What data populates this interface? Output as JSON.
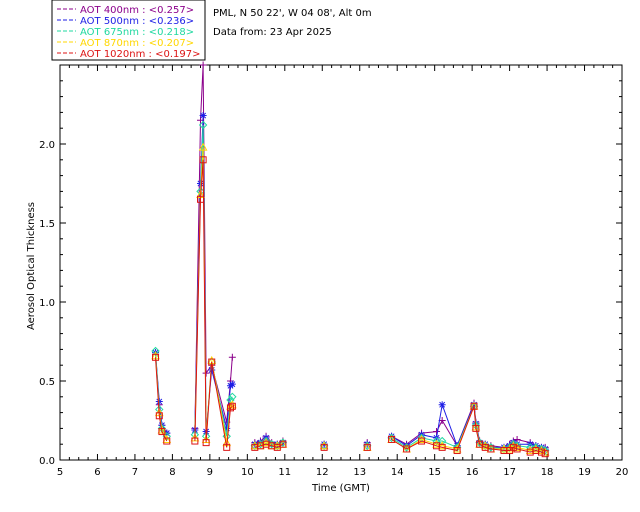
{
  "chart_data": {
    "type": "line",
    "xlabel": "Time (GMT)",
    "ylabel": "Aerosol Optical Thickness",
    "xlim": [
      5,
      20
    ],
    "ylim": [
      0,
      2.5
    ],
    "xticks": [
      "5",
      "6",
      "7",
      "8",
      "9",
      "10",
      "11",
      "12",
      "13",
      "14",
      "15",
      "16",
      "17",
      "18",
      "19",
      "20"
    ],
    "yticks": [
      "0.0",
      "0.5",
      "1.0",
      "1.5",
      "2.0"
    ],
    "info_lines": [
      "PML, N 50 22', W 04 08', Alt 0m",
      "Data from: 23 Apr 2025"
    ],
    "series": [
      {
        "name": "AOT  400nm : <0.257>",
        "color": "#8b008b",
        "marker": "plus",
        "x": [
          7.55,
          7.65,
          7.72,
          7.85,
          8.6,
          8.75,
          8.82,
          8.9,
          9.05,
          9.45,
          9.55,
          9.6,
          10.2,
          10.35,
          10.5,
          10.65,
          10.8,
          10.95,
          12.05,
          13.2,
          13.85,
          14.25,
          14.65,
          15.05,
          15.2,
          15.6,
          16.05,
          16.1,
          16.2,
          16.35,
          16.5,
          16.85,
          17,
          17.1,
          17.2,
          17.55,
          17.7,
          17.85,
          17.95
        ],
        "y": [
          0.67,
          0.35,
          0.22,
          0.17,
          0.2,
          2.15,
          2.5,
          0.55,
          0.6,
          0.24,
          0.5,
          0.65,
          0.11,
          0.12,
          0.15,
          0.11,
          0.1,
          0.12,
          0.1,
          0.11,
          0.15,
          0.1,
          0.17,
          0.18,
          0.25,
          0.09,
          0.36,
          0.24,
          0.12,
          0.1,
          0.09,
          0.08,
          0.1,
          0.12,
          0.13,
          0.11,
          0.09,
          0.08,
          0.08
        ]
      },
      {
        "name": "AOT  500nm : <0.236>",
        "color": "#1e1ee6",
        "marker": "asterisk",
        "x": [
          7.55,
          7.65,
          7.72,
          7.85,
          8.6,
          8.75,
          8.82,
          8.9,
          9.05,
          9.45,
          9.55,
          9.6,
          10.2,
          10.35,
          10.5,
          10.65,
          10.8,
          10.95,
          12.05,
          13.2,
          13.85,
          14.25,
          14.65,
          15.05,
          15.2,
          15.6,
          16.05,
          16.1,
          16.2,
          16.35,
          16.5,
          16.85,
          17,
          17.1,
          17.2,
          17.55,
          17.7,
          17.85,
          17.95
        ],
        "y": [
          0.68,
          0.37,
          0.22,
          0.17,
          0.19,
          1.75,
          2.18,
          0.18,
          0.57,
          0.2,
          0.47,
          0.48,
          0.1,
          0.11,
          0.14,
          0.1,
          0.1,
          0.11,
          0.1,
          0.1,
          0.15,
          0.09,
          0.16,
          0.14,
          0.35,
          0.09,
          0.35,
          0.23,
          0.11,
          0.1,
          0.08,
          0.08,
          0.09,
          0.11,
          0.1,
          0.1,
          0.09,
          0.08,
          0.07
        ]
      },
      {
        "name": "AOT  675nm : <0.218>",
        "color": "#20d8a0",
        "marker": "diamond",
        "x": [
          7.55,
          7.65,
          7.72,
          7.85,
          8.6,
          8.75,
          8.82,
          8.9,
          9.05,
          9.45,
          9.55,
          9.6,
          10.2,
          10.35,
          10.5,
          10.65,
          10.8,
          10.95,
          12.05,
          13.2,
          13.85,
          14.25,
          14.65,
          15.05,
          15.2,
          15.6,
          16.05,
          16.1,
          16.2,
          16.35,
          16.5,
          16.85,
          17,
          17.1,
          17.2,
          17.55,
          17.7,
          17.85,
          17.95
        ],
        "y": [
          0.69,
          0.32,
          0.2,
          0.15,
          0.16,
          1.7,
          2.12,
          0.15,
          0.62,
          0.15,
          0.38,
          0.4,
          0.09,
          0.1,
          0.12,
          0.1,
          0.09,
          0.11,
          0.09,
          0.09,
          0.14,
          0.08,
          0.14,
          0.12,
          0.12,
          0.08,
          0.34,
          0.22,
          0.11,
          0.09,
          0.08,
          0.07,
          0.08,
          0.1,
          0.09,
          0.08,
          0.08,
          0.07,
          0.06
        ]
      },
      {
        "name": "AOT  870nm : <0.207>",
        "color": "#ffd700",
        "marker": "triangle",
        "x": [
          7.55,
          7.65,
          7.72,
          7.85,
          8.6,
          8.75,
          8.82,
          8.9,
          9.05,
          9.45,
          9.55,
          9.6,
          10.2,
          10.35,
          10.5,
          10.65,
          10.8,
          10.95,
          12.05,
          13.2,
          13.85,
          14.25,
          14.65,
          15.05,
          15.2,
          15.6,
          16.05,
          16.1,
          16.2,
          16.35,
          16.5,
          16.85,
          17,
          17.1,
          17.2,
          17.55,
          17.7,
          17.85,
          17.95
        ],
        "y": [
          0.66,
          0.3,
          0.19,
          0.13,
          0.14,
          1.68,
          1.98,
          0.13,
          0.63,
          0.11,
          0.34,
          0.35,
          0.09,
          0.09,
          0.11,
          0.09,
          0.09,
          0.1,
          0.09,
          0.08,
          0.13,
          0.07,
          0.13,
          0.1,
          0.09,
          0.07,
          0.34,
          0.21,
          0.1,
          0.09,
          0.07,
          0.07,
          0.07,
          0.09,
          0.08,
          0.06,
          0.07,
          0.06,
          0.05
        ]
      },
      {
        "name": "AOT 1020nm : <0.197>",
        "color": "#dc1414",
        "marker": "square",
        "x": [
          7.55,
          7.65,
          7.72,
          7.85,
          8.6,
          8.75,
          8.82,
          8.9,
          9.05,
          9.45,
          9.55,
          9.6,
          10.2,
          10.35,
          10.5,
          10.65,
          10.8,
          10.95,
          12.05,
          13.2,
          13.85,
          14.25,
          14.65,
          15.05,
          15.2,
          15.6,
          16.05,
          16.1,
          16.2,
          16.35,
          16.5,
          16.85,
          17,
          17.1,
          17.2,
          17.55,
          17.7,
          17.85,
          17.95
        ],
        "y": [
          0.65,
          0.28,
          0.18,
          0.12,
          0.12,
          1.65,
          1.9,
          0.11,
          0.62,
          0.08,
          0.33,
          0.34,
          0.08,
          0.09,
          0.1,
          0.09,
          0.08,
          0.1,
          0.08,
          0.08,
          0.13,
          0.07,
          0.12,
          0.09,
          0.08,
          0.06,
          0.34,
          0.2,
          0.1,
          0.08,
          0.07,
          0.06,
          0.06,
          0.08,
          0.07,
          0.05,
          0.06,
          0.05,
          0.04
        ]
      }
    ]
  }
}
